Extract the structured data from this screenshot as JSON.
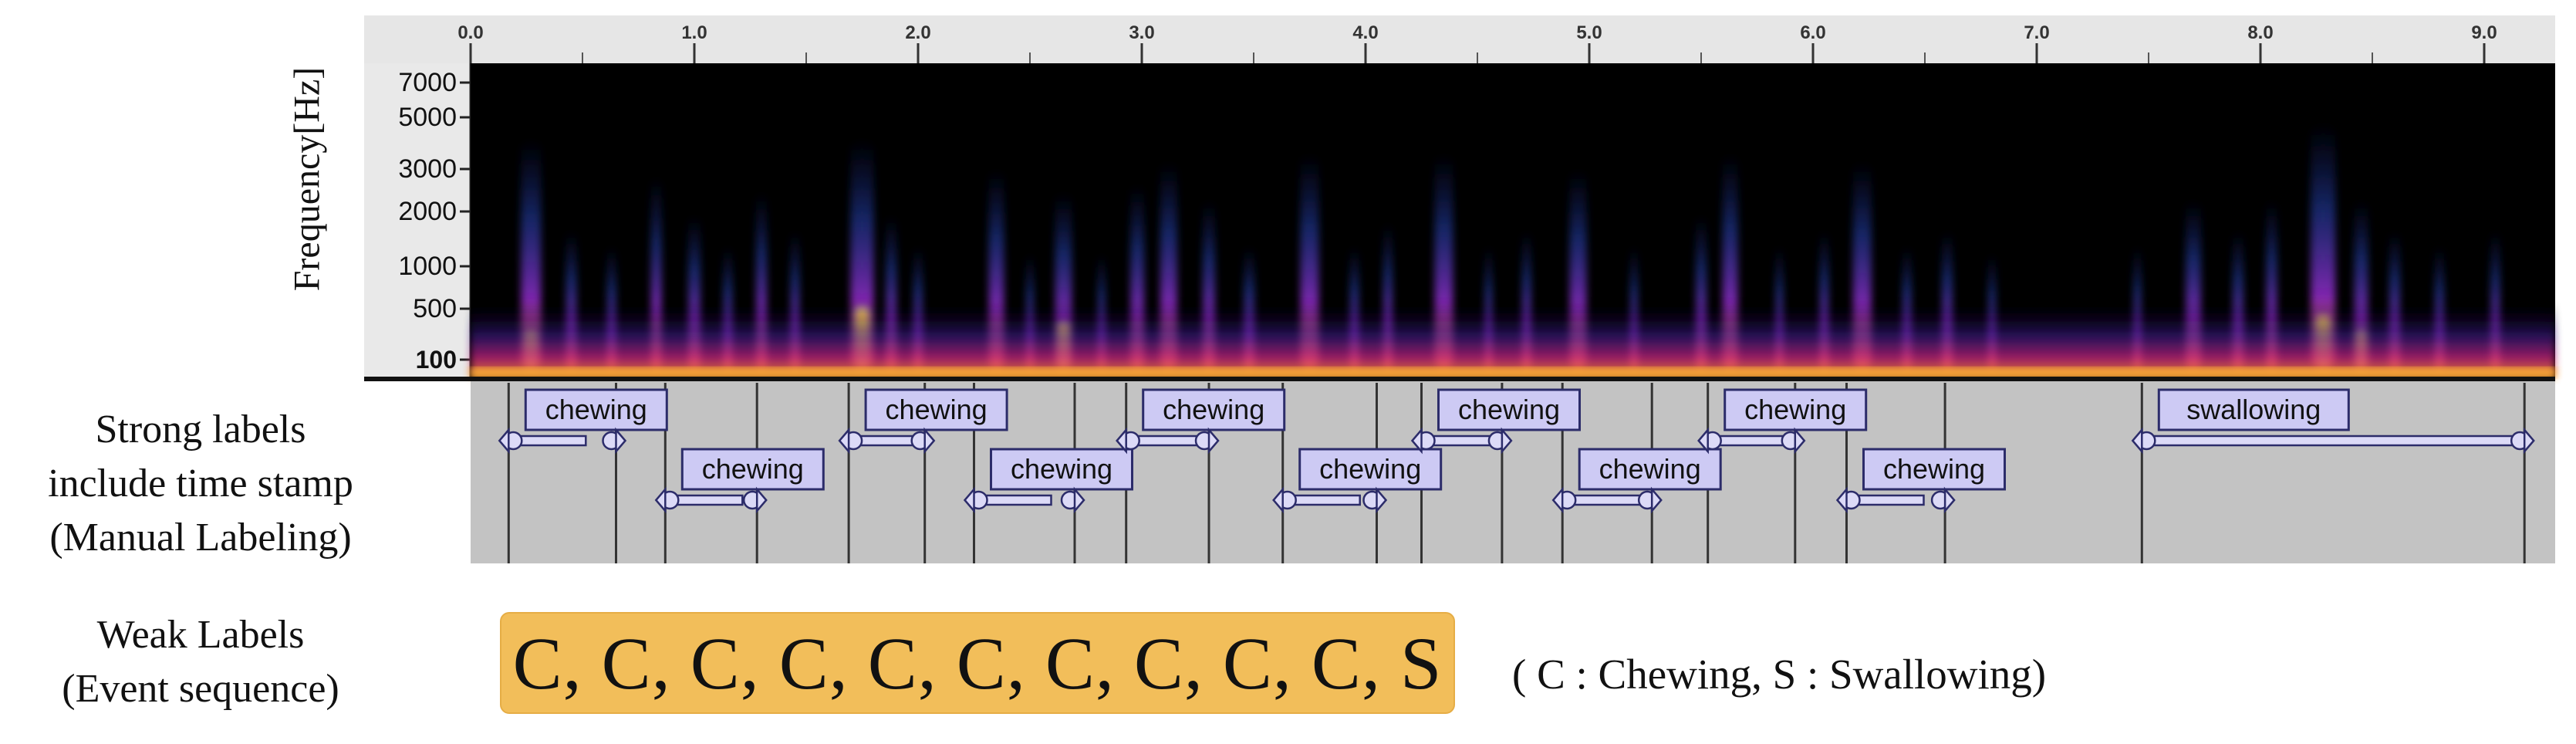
{
  "spectrogram": {
    "frequency_axis_label": "Frequency[Hz]",
    "frequency_ticks": [
      "7000",
      "5000",
      "3000",
      "2000",
      "1000",
      "500",
      "100"
    ],
    "time_ticks": [
      "0.0",
      "1.0",
      "2.0",
      "3.0",
      "4.0",
      "5.0",
      "6.0",
      "7.0",
      "8.0",
      "9.0"
    ]
  },
  "strong_labels": {
    "caption_lines": [
      "Strong labels",
      "include time stamp",
      "(Manual Labeling)"
    ],
    "events": [
      {
        "label": "chewing",
        "start": 0.17,
        "end": 0.65
      },
      {
        "label": "chewing",
        "start": 0.87,
        "end": 1.28
      },
      {
        "label": "chewing",
        "start": 1.69,
        "end": 2.03
      },
      {
        "label": "chewing",
        "start": 2.25,
        "end": 2.7
      },
      {
        "label": "chewing",
        "start": 2.93,
        "end": 3.3
      },
      {
        "label": "chewing",
        "start": 3.63,
        "end": 4.05
      },
      {
        "label": "chewing",
        "start": 4.25,
        "end": 4.61
      },
      {
        "label": "chewing",
        "start": 4.88,
        "end": 5.28
      },
      {
        "label": "chewing",
        "start": 5.53,
        "end": 5.92
      },
      {
        "label": "chewing",
        "start": 6.15,
        "end": 6.59
      },
      {
        "label": "swallowing",
        "start": 7.47,
        "end": 9.18
      }
    ]
  },
  "weak_labels": {
    "caption_lines": [
      "Weak Labels",
      "(Event sequence)"
    ],
    "sequence": "C, C, C, C, C, C, C, C, C, C, S",
    "legend": "( C : Chewing, S : Swallowing)"
  },
  "colors": {
    "spectrogram_background": "#000000",
    "label_track_background": "#c3c3c3",
    "label_box_fill": "#cdcaf4",
    "label_box_border": "#2c2c6a",
    "weak_box_fill": "#f2be5a"
  }
}
